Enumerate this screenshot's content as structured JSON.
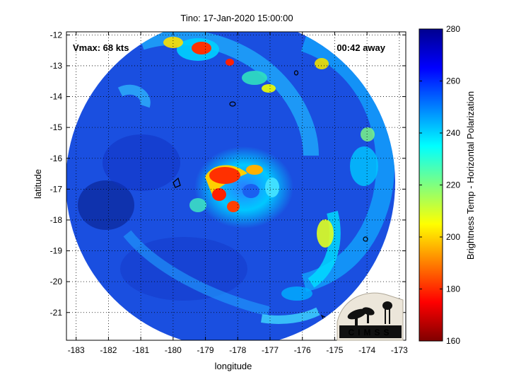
{
  "title": "Tino: 17-Jan-2020 15:00:00",
  "vmax_label": "Vmax: 68 kts",
  "time_away_label": "00:42 away",
  "xlabel": "longitude",
  "ylabel": "latitude",
  "x_ticks": [
    "-183",
    "-182",
    "-181",
    "-180",
    "-179",
    "-178",
    "-177",
    "-176",
    "-175",
    "-174",
    "-173"
  ],
  "y_ticks": [
    "-12",
    "-13",
    "-14",
    "-15",
    "-16",
    "-17",
    "-18",
    "-19",
    "-20",
    "-21"
  ],
  "colorbar": {
    "label": "Brightness Temp - Horizontal Polarization",
    "min": 160,
    "max": 280,
    "ticks": [
      "280",
      "260",
      "240",
      "220",
      "200",
      "180",
      "160"
    ]
  },
  "logo": {
    "text": "CIMSS"
  },
  "map": {
    "center_lon": -178.2,
    "center_lat": -17.1,
    "xlim": [
      -183.3,
      -172.8
    ],
    "ylim": [
      -21.9,
      -11.9
    ],
    "grid": true
  }
}
